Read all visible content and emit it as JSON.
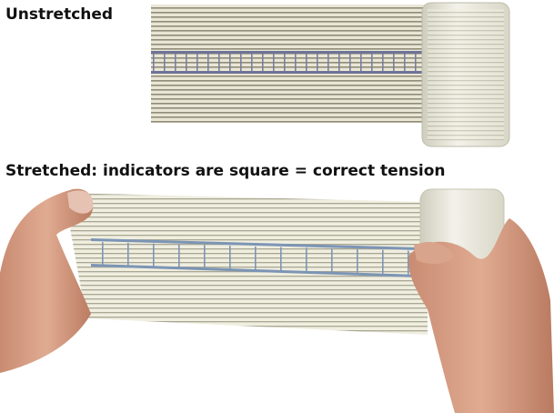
{
  "captions": {
    "unstretched": "Unstretched",
    "stretched": "Stretched: indicators are square = correct tension"
  }
}
